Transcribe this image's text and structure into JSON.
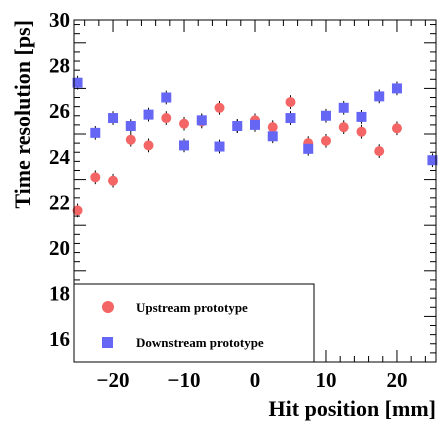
{
  "chart_data": {
    "type": "scatter",
    "xlabel": "Hit position [mm]",
    "ylabel": "Time resolution [ps]",
    "xlim": [
      -25.5,
      25.5
    ],
    "ylim": [
      15,
      30
    ],
    "x_ticks": [
      -20,
      -10,
      0,
      10,
      20
    ],
    "y_ticks": [
      16,
      18,
      20,
      22,
      24,
      26,
      28,
      30
    ],
    "legend_position": "bottom-left",
    "series": [
      {
        "name": "Upstream prototype",
        "marker": "circle",
        "color": "#f46666",
        "x": [
          -25,
          -22.5,
          -20,
          -17.5,
          -15,
          -12.5,
          -10,
          -7.5,
          -5,
          -2.5,
          0,
          2.5,
          5,
          7.5,
          10,
          12.5,
          15,
          17.5,
          20
        ],
        "y": [
          21.65,
          23.1,
          22.95,
          24.75,
          24.5,
          25.7,
          25.45,
          25.55,
          26.15,
          25.35,
          25.6,
          25.3,
          26.4,
          24.6,
          24.7,
          25.3,
          25.1,
          24.25,
          25.25
        ],
        "err": [
          0.3,
          0.3,
          0.3,
          0.3,
          0.3,
          0.3,
          0.3,
          0.3,
          0.3,
          0.3,
          0.3,
          0.3,
          0.3,
          0.3,
          0.3,
          0.3,
          0.3,
          0.3,
          0.3
        ]
      },
      {
        "name": "Downstream prototype",
        "marker": "square",
        "color": "#6666f4",
        "x": [
          -25,
          -22.5,
          -20,
          -17.5,
          -15,
          -12.5,
          -10,
          -7.5,
          -5,
          -2.5,
          0,
          2.5,
          5,
          7.5,
          10,
          12.5,
          15,
          17.5,
          20,
          25
        ],
        "y": [
          27.25,
          25.05,
          25.7,
          25.35,
          25.85,
          26.6,
          24.5,
          25.6,
          24.45,
          25.35,
          25.4,
          24.9,
          25.7,
          24.35,
          25.8,
          26.15,
          25.75,
          26.65,
          27.0,
          23.85
        ],
        "err": [
          0.3,
          0.3,
          0.3,
          0.3,
          0.3,
          0.3,
          0.3,
          0.3,
          0.3,
          0.3,
          0.3,
          0.3,
          0.3,
          0.3,
          0.3,
          0.3,
          0.3,
          0.3,
          0.3,
          0.3
        ]
      }
    ]
  }
}
